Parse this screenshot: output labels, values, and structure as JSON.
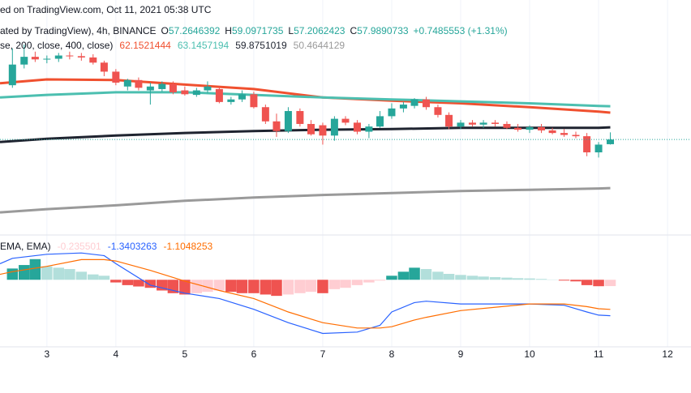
{
  "header": {
    "line1": "ed on TradingView.com, Oct 11, 2021 05:38 UTC"
  },
  "chart_data": [
    {
      "type": "candlestick",
      "title": "ated by TradingView), 4h, BINANCE",
      "ohlc_labels": [
        "O",
        "H",
        "L",
        "C"
      ],
      "change_label": "+0.7485553 (+1.31%)",
      "indicator_title": "se, 200, close, 400, close)",
      "up_color": "#26a69a",
      "down_color": "#ef5350",
      "xlim": [
        2.32,
        12.34
      ],
      "xticks": [
        3,
        4,
        5,
        6,
        7,
        8,
        9,
        10,
        11,
        12
      ],
      "ylim": [
        43.2,
        79.6
      ],
      "grid": true,
      "x": [
        2.5,
        2.67,
        2.83,
        3,
        3.17,
        3.33,
        3.5,
        3.67,
        3.83,
        4,
        4.17,
        4.33,
        4.5,
        4.67,
        4.83,
        5,
        5.17,
        5.33,
        5.5,
        5.67,
        5.83,
        6,
        6.17,
        6.33,
        6.5,
        6.67,
        6.83,
        7,
        7.17,
        7.33,
        7.5,
        7.67,
        7.83,
        8,
        8.17,
        8.33,
        8.5,
        8.67,
        8.83,
        9,
        9.17,
        9.33,
        9.5,
        9.67,
        9.83,
        10,
        10.17,
        10.33,
        10.5,
        10.67,
        10.83,
        11,
        11.17
      ],
      "open": [
        66.4,
        69.6,
        70.8,
        70.4,
        70.5,
        71.0,
        70.9,
        70.7,
        69.9,
        68.5,
        66.2,
        67.2,
        65.6,
        65.8,
        66.6,
        65.6,
        64.9,
        65.6,
        65.8,
        63.8,
        64.2,
        65.0,
        63.0,
        60.8,
        59.3,
        62.4,
        60.4,
        60.2,
        58.6,
        61.2,
        60.6,
        59.2,
        60.0,
        61.6,
        62.8,
        63.2,
        64.2,
        63.0,
        61.8,
        60.0,
        60.6,
        60.3,
        60.6,
        60.4,
        59.8,
        59.5,
        59.9,
        59.4,
        59.0,
        58.7,
        58.5,
        56.0,
        57.2646392
      ],
      "high": [
        72.1,
        72.7,
        71.6,
        71.0,
        71.4,
        71.6,
        71.4,
        71.2,
        70.2,
        68.9,
        67.4,
        67.6,
        66.8,
        67.0,
        67.0,
        66.2,
        66.0,
        67.0,
        66.2,
        64.6,
        65.6,
        65.4,
        63.4,
        62.0,
        63.0,
        62.8,
        61.0,
        60.6,
        61.6,
        61.6,
        61.0,
        60.4,
        62.4,
        63.6,
        63.8,
        64.4,
        64.6,
        63.4,
        62.2,
        61.0,
        61.0,
        61.0,
        61.0,
        60.8,
        60.4,
        60.2,
        60.4,
        59.8,
        59.6,
        59.2,
        59.0,
        57.6,
        59.0971735
      ],
      "low": [
        66.0,
        69.0,
        70.0,
        69.8,
        70.0,
        70.4,
        70.2,
        69.6,
        67.8,
        66.4,
        65.6,
        65.6,
        63.4,
        65.4,
        65.0,
        64.8,
        64.6,
        65.2,
        63.6,
        63.4,
        63.8,
        62.8,
        60.4,
        58.4,
        59.0,
        60.0,
        58.6,
        57.2,
        57.8,
        60.2,
        58.8,
        58.2,
        59.8,
        61.2,
        62.2,
        62.8,
        62.6,
        61.4,
        59.6,
        59.6,
        60.0,
        59.8,
        60.0,
        59.6,
        59.2,
        59.0,
        59.0,
        58.8,
        58.4,
        58.2,
        55.4,
        55.2,
        57.2062423
      ],
      "close": [
        69.6,
        70.8,
        70.4,
        70.5,
        71.0,
        70.9,
        70.7,
        69.9,
        68.5,
        66.8,
        67.2,
        66.0,
        66.2,
        66.6,
        65.3,
        65.0,
        65.6,
        66.2,
        63.8,
        64.2,
        65.0,
        63.0,
        60.8,
        59.3,
        62.4,
        60.4,
        58.8,
        58.6,
        61.2,
        60.6,
        59.2,
        60.0,
        61.6,
        62.8,
        63.4,
        64.2,
        63.0,
        61.8,
        60.0,
        60.6,
        60.3,
        60.6,
        60.4,
        59.8,
        59.5,
        59.9,
        59.4,
        59.0,
        58.7,
        58.5,
        56.0,
        57.2,
        57.9890733
      ],
      "lines": [
        {
          "color": "#f0502f",
          "x": [
            2.32,
            3,
            4,
            5,
            6,
            7,
            8,
            9,
            10,
            11,
            11.17
          ],
          "values": [
            66.7,
            67.3,
            67.2,
            66.5,
            65.8,
            64.5,
            64.0,
            63.6,
            63.0,
            62.3,
            62.1521444
          ]
        },
        {
          "color": "#4cbfb0",
          "x": [
            2.32,
            3,
            4,
            5,
            6,
            7,
            8,
            9,
            10,
            11,
            11.17
          ],
          "values": [
            64.5,
            64.9,
            65.3,
            65.3,
            64.9,
            64.5,
            64.2,
            63.9,
            63.6,
            63.2,
            63.1457194
          ]
        },
        {
          "color": "#1f2430",
          "x": [
            2.32,
            3,
            4,
            5,
            6,
            7,
            8,
            9,
            10,
            11,
            11.17
          ],
          "values": [
            57.6,
            58.1,
            58.6,
            59.0,
            59.3,
            59.5,
            59.6,
            59.8,
            59.8,
            59.8,
            59.8751019
          ]
        },
        {
          "color": "#9a9a9a",
          "x": [
            2.32,
            3,
            4,
            5,
            6,
            7,
            8,
            9,
            10,
            11,
            11.17
          ],
          "values": [
            46.7,
            47.2,
            47.8,
            48.5,
            49.0,
            49.4,
            49.7,
            50.0,
            50.2,
            50.4,
            50.4644129
          ]
        }
      ]
    },
    {
      "type": "macd",
      "title": "EMA, EMA)",
      "ylim": [
        -2.5,
        1.67
      ],
      "histogram_colors": [
        "#26a69a",
        "#b2dfdb",
        "#ef5350",
        "#ffcdd2"
      ],
      "x": [
        2.5,
        2.67,
        2.83,
        3,
        3.17,
        3.33,
        3.5,
        3.67,
        3.83,
        4,
        4.17,
        4.33,
        4.5,
        4.67,
        4.83,
        5,
        5.17,
        5.33,
        5.5,
        5.67,
        5.83,
        6,
        6.17,
        6.33,
        6.5,
        6.67,
        6.83,
        7,
        7.17,
        7.33,
        7.5,
        7.67,
        7.83,
        8,
        8.17,
        8.33,
        8.5,
        8.67,
        8.83,
        9,
        9.17,
        9.33,
        9.5,
        9.67,
        9.83,
        10,
        10.17,
        10.33,
        10.5,
        10.67,
        10.83,
        11,
        11.17
      ],
      "histogram": [
        0.42,
        0.55,
        0.77,
        0.5,
        0.45,
        0.4,
        0.3,
        0.2,
        0.15,
        -0.1,
        -0.2,
        -0.25,
        -0.3,
        -0.4,
        -0.5,
        -0.55,
        -0.5,
        -0.45,
        -0.4,
        -0.45,
        -0.5,
        -0.5,
        -0.55,
        -0.6,
        -0.55,
        -0.5,
        -0.45,
        -0.5,
        -0.35,
        -0.3,
        -0.2,
        -0.1,
        -0.03,
        0.15,
        0.3,
        0.45,
        0.4,
        0.3,
        0.22,
        0.18,
        0.15,
        0.12,
        0.1,
        0.08,
        0.06,
        0.05,
        0.03,
        0.01,
        -0.03,
        -0.06,
        -0.2,
        -0.24,
        -0.235501
      ],
      "series": [
        {
          "color": "#2962ff",
          "x": [
            2.32,
            2.5,
            3,
            3.5,
            3.83,
            4,
            4.5,
            5,
            5.5,
            6,
            6.5,
            7,
            7.5,
            7.83,
            8,
            8.33,
            8.5,
            9,
            10,
            10.5,
            10.83,
            11,
            11.17
          ],
          "values": [
            0.6,
            0.8,
            0.95,
            1.0,
            0.9,
            0.6,
            -0.2,
            -0.5,
            -0.7,
            -1.1,
            -1.6,
            -2.0,
            -1.95,
            -1.7,
            -1.2,
            -0.85,
            -0.8,
            -0.9,
            -0.9,
            -0.95,
            -1.2,
            -1.32,
            -1.3403263
          ]
        },
        {
          "color": "#ff6d00",
          "x": [
            2.32,
            2.5,
            3,
            3.5,
            3.83,
            4,
            4.5,
            5,
            5.5,
            6,
            6.5,
            7,
            7.5,
            7.83,
            8,
            8.33,
            8.5,
            9,
            10,
            10.5,
            10.83,
            11,
            11.17
          ],
          "values": [
            0.2,
            0.3,
            0.5,
            0.75,
            0.75,
            0.7,
            0.35,
            -0.05,
            -0.4,
            -0.7,
            -1.2,
            -1.6,
            -1.8,
            -1.8,
            -1.75,
            -1.5,
            -1.4,
            -1.15,
            -0.9,
            -0.9,
            -1.0,
            -1.08,
            -1.1048253
          ]
        }
      ]
    }
  ]
}
